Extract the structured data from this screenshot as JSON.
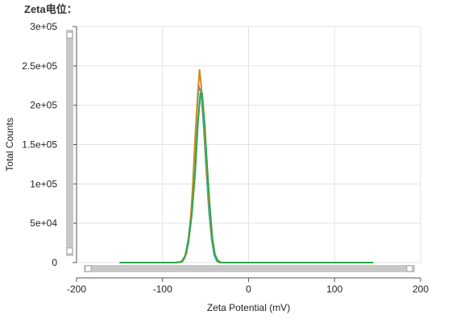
{
  "page": {
    "title": "Zeta电位："
  },
  "chart_data": {
    "type": "line",
    "title": "",
    "xlabel": "Zeta Potential (mV)",
    "ylabel": "Total Counts",
    "xlim": [
      -200,
      200
    ],
    "ylim": [
      0,
      300000
    ],
    "x_ticks": [
      -200,
      -100,
      0,
      100,
      200
    ],
    "x_tick_labels": [
      "-200",
      "-100",
      "0",
      "100",
      "200"
    ],
    "y_ticks": [
      0,
      50000,
      100000,
      150000,
      200000,
      250000,
      300000
    ],
    "y_tick_labels": [
      "0",
      "5e+04",
      "1e+05",
      "1.5e+05",
      "2e+05",
      "2.5e+05",
      "3e+05"
    ],
    "grid": true,
    "legend": "none",
    "series": [
      {
        "color": "#2e9fd8",
        "x": [
          -85,
          -78,
          -74,
          -70,
          -66,
          -63,
          -60,
          -58,
          -55,
          -52,
          -49,
          -46,
          -43,
          -40,
          -37,
          -34,
          -30
        ],
        "y": [
          0,
          1000,
          6000,
          30000,
          70000,
          130000,
          190000,
          225000,
          215000,
          170000,
          115000,
          65000,
          30000,
          10000,
          2000,
          0,
          0
        ]
      },
      {
        "color": "#d48a1f",
        "x": [
          -82,
          -76,
          -72,
          -68,
          -65,
          -62,
          -59,
          -57,
          -55,
          -52,
          -49,
          -46,
          -43,
          -40,
          -37,
          -34,
          -30
        ],
        "y": [
          0,
          2000,
          12000,
          45000,
          95000,
          160000,
          215000,
          245000,
          225000,
          180000,
          125000,
          75000,
          35000,
          13000,
          4000,
          0,
          0
        ]
      },
      {
        "color": "#2aa84a",
        "x": [
          -150,
          -85,
          -78,
          -74,
          -70,
          -66,
          -62,
          -59,
          -56,
          -54,
          -51,
          -48,
          -45,
          -42,
          -39,
          -36,
          -32,
          -28,
          145
        ],
        "y": [
          0,
          0,
          1000,
          8000,
          25000,
          60000,
          115000,
          175000,
          215000,
          215000,
          175000,
          120000,
          70000,
          30000,
          10000,
          3000,
          0,
          0,
          0
        ]
      }
    ]
  }
}
